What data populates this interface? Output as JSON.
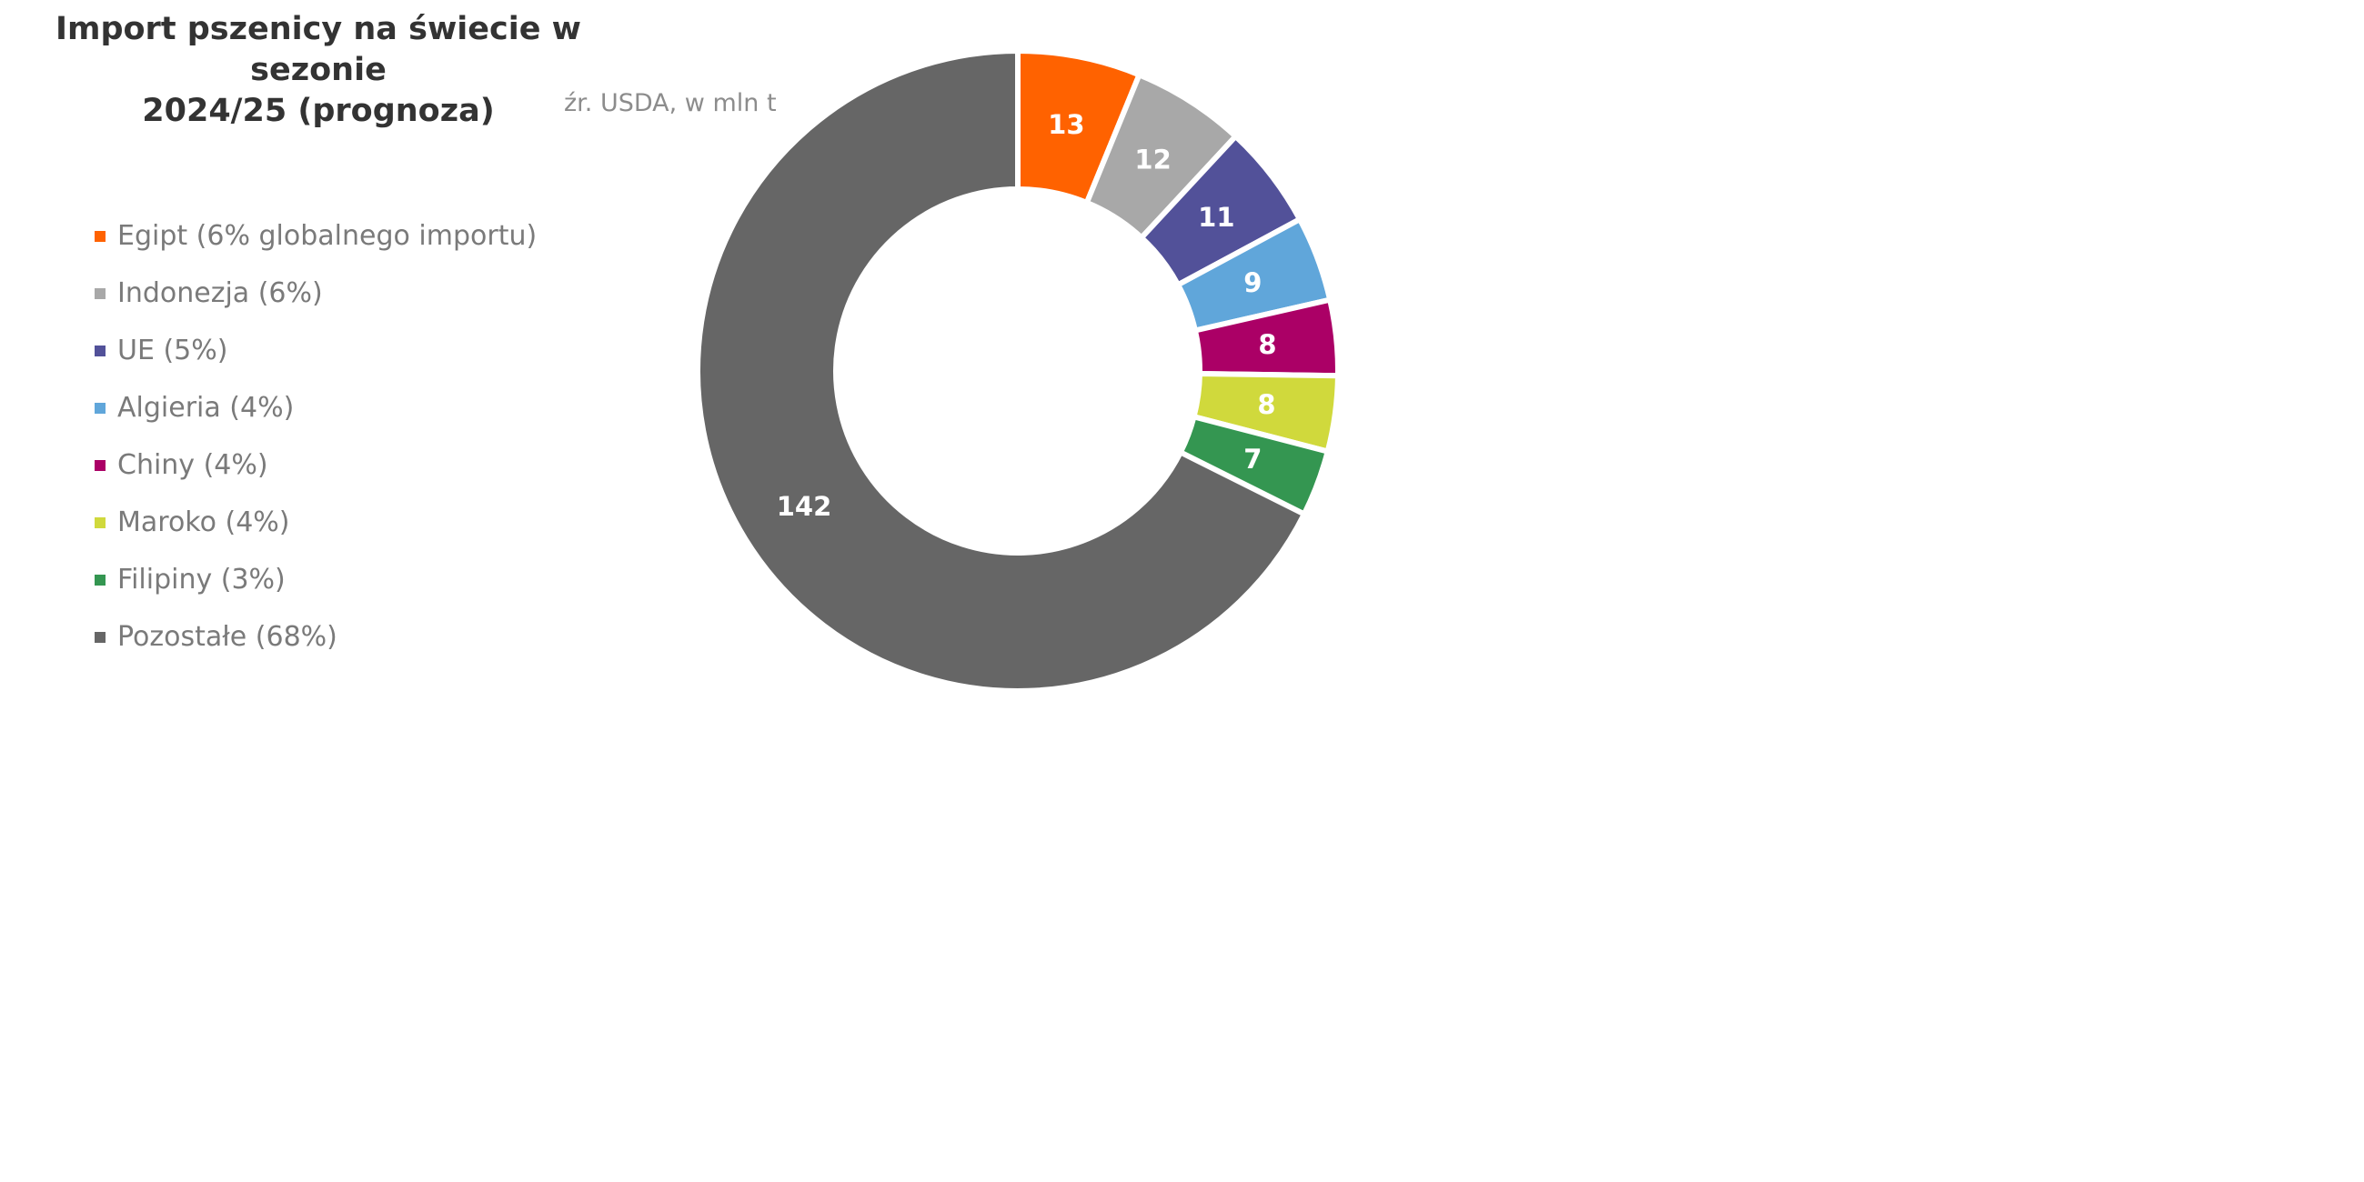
{
  "chart_data": {
    "type": "pie",
    "title": "Import pszenicy na świecie w sezonie 2024/25 (prognoza)",
    "title_lines": [
      "Import pszenicy na świecie w sezonie",
      "2024/25 (prognoza)"
    ],
    "subtitle": "źr. USDA, w mln t",
    "legend_position": "left",
    "slices": [
      {
        "label": "Egipt (6% globalnego importu)",
        "value": 13,
        "value_label": "13",
        "color": "#ff6200"
      },
      {
        "label": "Indonezja (6%)",
        "value": 12,
        "value_label": "12",
        "color": "#a8a8a8"
      },
      {
        "label": "UE (5%)",
        "value": 11,
        "value_label": "11",
        "color": "#525199"
      },
      {
        "label": "Algieria (4%)",
        "value": 9,
        "value_label": "9",
        "color": "#60a6da"
      },
      {
        "label": "Chiny (4%)",
        "value": 8,
        "value_label": "8",
        "color": "#ab0066"
      },
      {
        "label": "Maroko (4%)",
        "value": 8,
        "value_label": "8",
        "color": "#d0d93c"
      },
      {
        "label": "Filipiny (3%)",
        "value": 7,
        "value_label": "7",
        "color": "#349651"
      },
      {
        "label": "Pozostałe (68%)",
        "value": 142,
        "value_label": "142",
        "color": "#666666"
      }
    ]
  }
}
